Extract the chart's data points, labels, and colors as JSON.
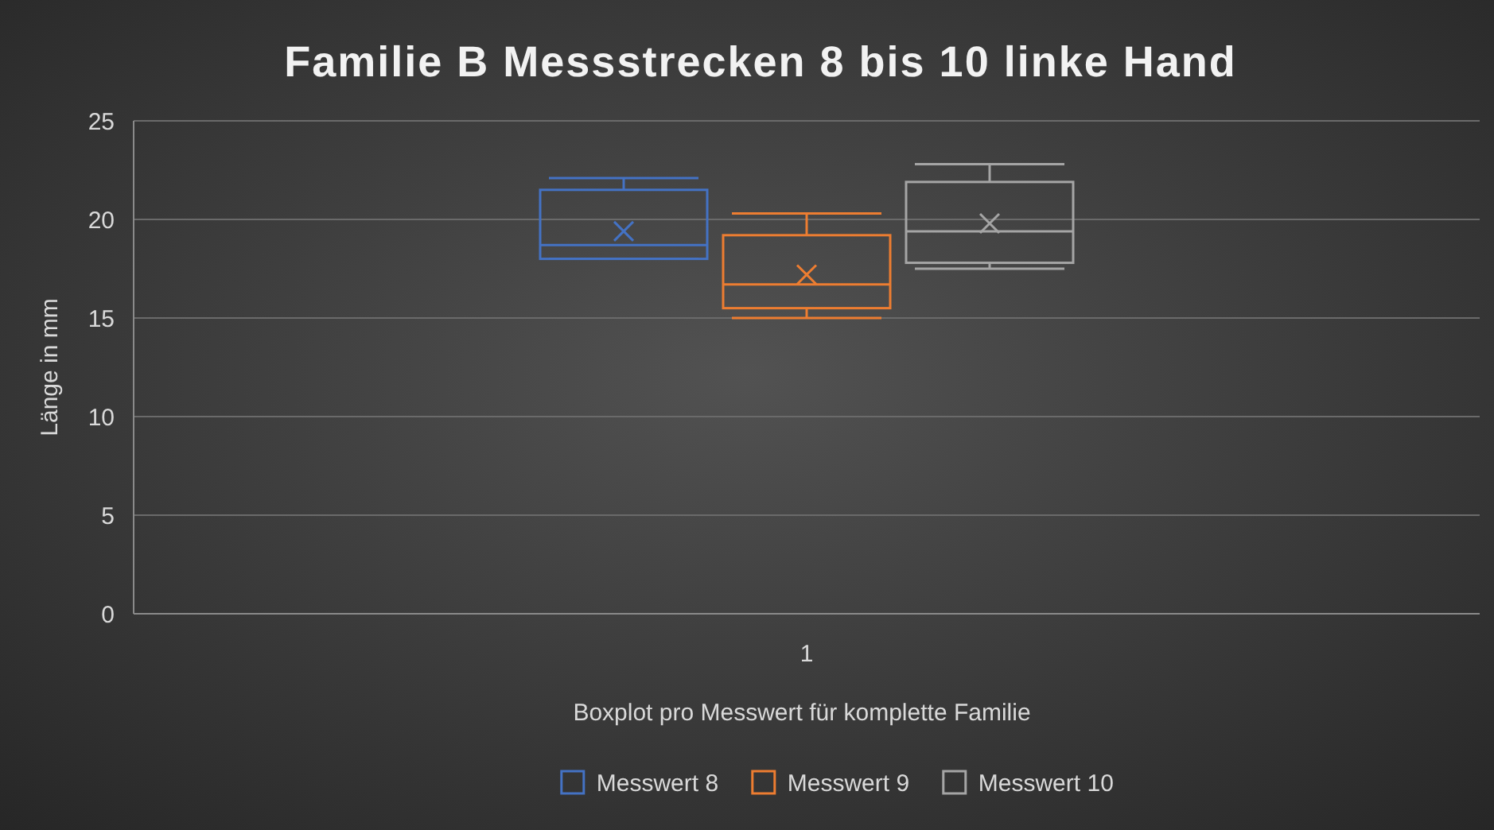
{
  "chart_data": {
    "type": "box",
    "title": "Familie B Messstrecken 8 bis 10 linke Hand",
    "xlabel": "Boxplot pro Messwert für komplette Familie",
    "ylabel": "Länge in mm",
    "categories": [
      "1"
    ],
    "ylim": [
      0,
      25
    ],
    "yticks": [
      0,
      5,
      10,
      15,
      20,
      25
    ],
    "grid": "y",
    "legend": "bottom",
    "series": [
      {
        "name": "Messwert 8",
        "color": "#4472c4",
        "boxes": [
          {
            "low": 18.0,
            "q1": 18.0,
            "median": 18.7,
            "q3": 21.5,
            "high": 22.1,
            "mean": 19.4
          }
        ]
      },
      {
        "name": "Messwert 9",
        "color": "#ed7d31",
        "boxes": [
          {
            "low": 15.0,
            "q1": 15.5,
            "median": 16.7,
            "q3": 19.2,
            "high": 20.3,
            "mean": 17.2
          }
        ]
      },
      {
        "name": "Messwert 10",
        "color": "#a5a5a5",
        "boxes": [
          {
            "low": 17.5,
            "q1": 17.8,
            "median": 19.4,
            "q3": 21.9,
            "high": 22.8,
            "mean": 19.8
          }
        ]
      }
    ]
  }
}
